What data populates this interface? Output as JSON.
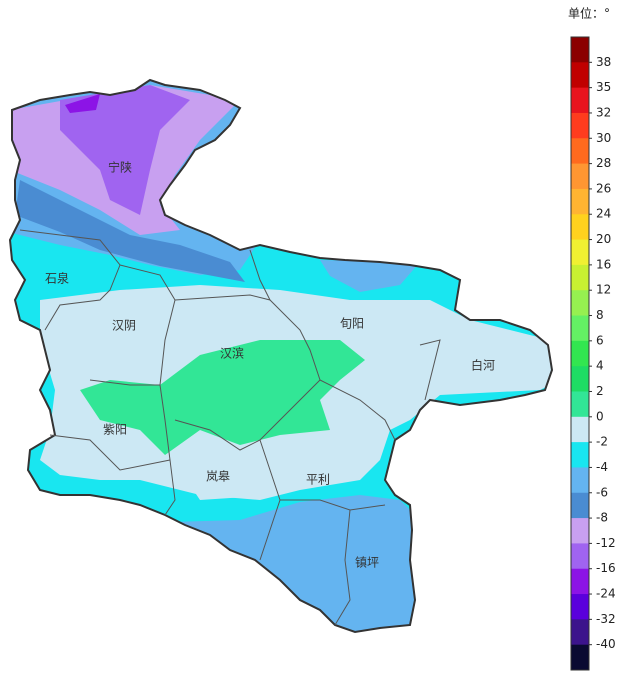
{
  "unit_label": "单位：°",
  "legend": {
    "labels": [
      38,
      35,
      32,
      30,
      28,
      26,
      24,
      20,
      16,
      12,
      8,
      6,
      4,
      2,
      0,
      -2,
      -4,
      -6,
      -8,
      -12,
      -16,
      -24,
      -32,
      -40
    ],
    "colors": [
      "#8b0000",
      "#c00000",
      "#e8141e",
      "#ff3c1e",
      "#ff6a1e",
      "#ff9632",
      "#ffb432",
      "#ffd21e",
      "#f0f032",
      "#c8f032",
      "#96f050",
      "#64f064",
      "#32e650",
      "#1edc64",
      "#32e696",
      "#cce8f4",
      "#19e6f0",
      "#64b4f0",
      "#4a8cd2",
      "#c8a0f0",
      "#a064f0",
      "#8c14e6",
      "#5a00dc",
      "#3c148c",
      "#0a0a32"
    ]
  },
  "places": [
    "宁陕",
    "石泉",
    "汉阴",
    "汉滨",
    "旬阳",
    "白河",
    "紫阳",
    "岚皋",
    "平利",
    "镇坪"
  ]
}
